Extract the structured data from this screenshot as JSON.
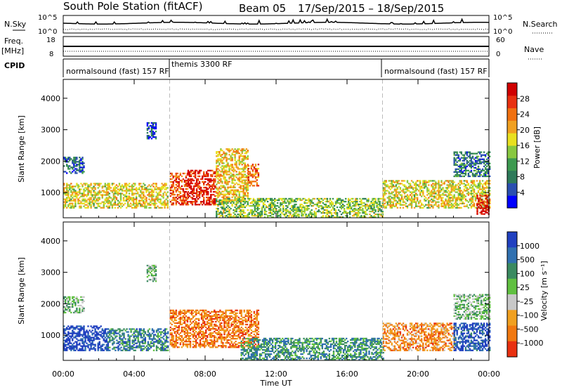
{
  "header": {
    "station": "South Pole Station (fitACF)",
    "beam": "Beam 05",
    "date_range": "17/Sep/2015 – 18/Sep/2015"
  },
  "strips": {
    "nsky_label": "N.Sky",
    "nsky_ticks": [
      "10^5",
      "10^0"
    ],
    "nsearch_label": "N.Search",
    "freq_label_1": "Freq.",
    "freq_label_2": "[MHz]",
    "freq_ticks": [
      "18",
      "8"
    ],
    "nave_label": "Nave",
    "nave_ticks": [
      "60",
      "0"
    ],
    "cpid_label": "CPID",
    "cpid_segments": [
      {
        "label": "normalsound (fast) 157 RF",
        "start_hour": 0
      },
      {
        "label": "themis 3300 RF",
        "start_hour": 6
      },
      {
        "label": "normalsound (fast) 157 RF",
        "start_hour": 18
      }
    ]
  },
  "chart_data": [
    {
      "type": "heatmap",
      "name": "power",
      "ylabel": "Slant Range [km]",
      "xlabel": "Time UT",
      "xlim_hours": [
        0,
        24
      ],
      "ylim": [
        200,
        4600
      ],
      "yticks": [
        1000,
        2000,
        3000,
        4000
      ],
      "xticks": [
        "00:00",
        "04:00",
        "08:00",
        "12:00",
        "16:00",
        "20:00",
        "00:00"
      ],
      "mode_change_hours": [
        6,
        18
      ],
      "colorbar": {
        "label": "Power [dB]",
        "ticks": [
          "4",
          "8",
          "12",
          "16",
          "20",
          "24",
          "28"
        ],
        "colors": [
          "#0000ff",
          "#2a4fb0",
          "#2e7a5a",
          "#3d9a50",
          "#88c840",
          "#e8e020",
          "#f0a020",
          "#f07010",
          "#e83010",
          "#d00000"
        ]
      },
      "echo_regions": [
        {
          "t0": 0.0,
          "t1": 5.9,
          "r0": 500,
          "r1": 1300,
          "level": 0.55
        },
        {
          "t0": 0.0,
          "t1": 1.2,
          "r0": 1600,
          "r1": 2100,
          "level": 0.2
        },
        {
          "t0": 4.7,
          "t1": 5.2,
          "r0": 2700,
          "r1": 3200,
          "level": 0.15
        },
        {
          "t0": 6.0,
          "t1": 7.0,
          "r0": 600,
          "r1": 1600,
          "level": 0.8
        },
        {
          "t0": 7.0,
          "t1": 8.6,
          "r0": 600,
          "r1": 1700,
          "level": 0.9
        },
        {
          "t0": 8.6,
          "t1": 10.4,
          "r0": 700,
          "r1": 2400,
          "level": 0.6
        },
        {
          "t0": 10.4,
          "t1": 11.0,
          "r0": 1200,
          "r1": 1900,
          "level": 0.75
        },
        {
          "t0": 8.6,
          "t1": 18.0,
          "r0": 200,
          "r1": 800,
          "level": 0.45
        },
        {
          "t0": 18.0,
          "t1": 24.0,
          "r0": 500,
          "r1": 1400,
          "level": 0.55
        },
        {
          "t0": 22.0,
          "t1": 24.0,
          "r0": 1500,
          "r1": 2300,
          "level": 0.25
        },
        {
          "t0": 23.3,
          "t1": 24.0,
          "r0": 300,
          "r1": 900,
          "level": 0.95
        }
      ]
    },
    {
      "type": "heatmap",
      "name": "velocity",
      "ylabel": "Slant Range [km]",
      "xlabel": "Time UT",
      "xlim_hours": [
        0,
        24
      ],
      "ylim": [
        200,
        4600
      ],
      "yticks": [
        1000,
        2000,
        3000,
        4000
      ],
      "xticks": [
        "00:00",
        "04:00",
        "08:00",
        "12:00",
        "16:00",
        "20:00",
        "00:00"
      ],
      "mode_change_hours": [
        6,
        18
      ],
      "colorbar": {
        "label": "Velocity [m s⁻¹]",
        "ticks": [
          "1000",
          "500",
          "100",
          "25",
          "–25",
          "–100",
          "–500",
          "–1000"
        ],
        "colors": [
          "#2040c0",
          "#3070b0",
          "#3a8a60",
          "#60c040",
          "#c8c8c8",
          "#f0a020",
          "#f07810",
          "#e83010"
        ]
      },
      "echo_regions": [
        {
          "t0": 0.0,
          "t1": 2.5,
          "r0": 500,
          "r1": 1300,
          "level": 0.05
        },
        {
          "t0": 2.5,
          "t1": 5.9,
          "r0": 500,
          "r1": 1200,
          "level": 0.25
        },
        {
          "t0": 0.0,
          "t1": 1.2,
          "r0": 1700,
          "r1": 2200,
          "level": 0.45
        },
        {
          "t0": 4.7,
          "t1": 5.2,
          "r0": 2700,
          "r1": 3200,
          "level": 0.45
        },
        {
          "t0": 6.0,
          "t1": 11.0,
          "r0": 600,
          "r1": 1800,
          "level": 0.8
        },
        {
          "t0": 10.0,
          "t1": 18.0,
          "r0": 200,
          "r1": 900,
          "level": 0.3
        },
        {
          "t0": 18.0,
          "t1": 22.0,
          "r0": 500,
          "r1": 1400,
          "level": 0.75
        },
        {
          "t0": 22.0,
          "t1": 24.0,
          "r0": 500,
          "r1": 1400,
          "level": 0.1
        },
        {
          "t0": 22.0,
          "t1": 24.0,
          "r0": 1500,
          "r1": 2300,
          "level": 0.45
        }
      ]
    }
  ]
}
